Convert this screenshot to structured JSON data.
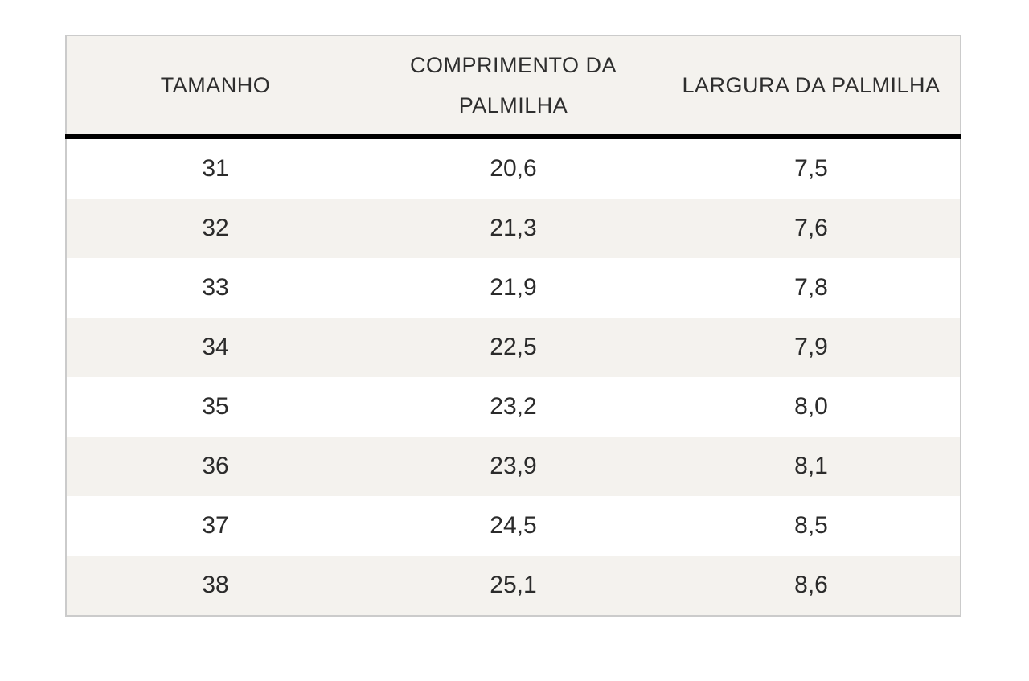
{
  "colors": {
    "page_background": "#ffffff",
    "header_background": "#f4f2ee",
    "stripe_background": "#f4f2ee",
    "row_background": "#ffffff",
    "outer_border": "#cbcbcb",
    "header_separator": "#000000",
    "text": "#2b2b2b"
  },
  "table": {
    "columns": [
      {
        "label": "TAMANHO"
      },
      {
        "label": "COMPRIMENTO DA PALMILHA"
      },
      {
        "label": "LARGURA DA PALMILHA"
      }
    ],
    "rows": [
      [
        "31",
        "20,6",
        "7,5"
      ],
      [
        "32",
        "21,3",
        "7,6"
      ],
      [
        "33",
        "21,9",
        "7,8"
      ],
      [
        "34",
        "22,5",
        "7,9"
      ],
      [
        "35",
        "23,2",
        "8,0"
      ],
      [
        "36",
        "23,9",
        "8,1"
      ],
      [
        "37",
        "24,5",
        "8,5"
      ],
      [
        "38",
        "25,1",
        "8,6"
      ]
    ]
  },
  "chart_data": {
    "type": "table",
    "title": "",
    "columns": [
      "TAMANHO",
      "COMPRIMENTO DA PALMILHA",
      "LARGURA DA PALMILHA"
    ],
    "rows": [
      {
        "tamanho": 31,
        "comprimento_da_palmilha": 20.6,
        "largura_da_palmilha": 7.5
      },
      {
        "tamanho": 32,
        "comprimento_da_palmilha": 21.3,
        "largura_da_palmilha": 7.6
      },
      {
        "tamanho": 33,
        "comprimento_da_palmilha": 21.9,
        "largura_da_palmilha": 7.8
      },
      {
        "tamanho": 34,
        "comprimento_da_palmilha": 22.5,
        "largura_da_palmilha": 7.9
      },
      {
        "tamanho": 35,
        "comprimento_da_palmilha": 23.2,
        "largura_da_palmilha": 8.0
      },
      {
        "tamanho": 36,
        "comprimento_da_palmilha": 23.9,
        "largura_da_palmilha": 8.1
      },
      {
        "tamanho": 37,
        "comprimento_da_palmilha": 24.5,
        "largura_da_palmilha": 8.5
      },
      {
        "tamanho": 38,
        "comprimento_da_palmilha": 25.1,
        "largura_da_palmilha": 8.6
      }
    ],
    "decimal_separator": ",",
    "layout_hints": {
      "zebra_striping": true,
      "striped_rows": "even",
      "header_separator_thickness_px": 6,
      "columns_equal_width": true
    }
  }
}
